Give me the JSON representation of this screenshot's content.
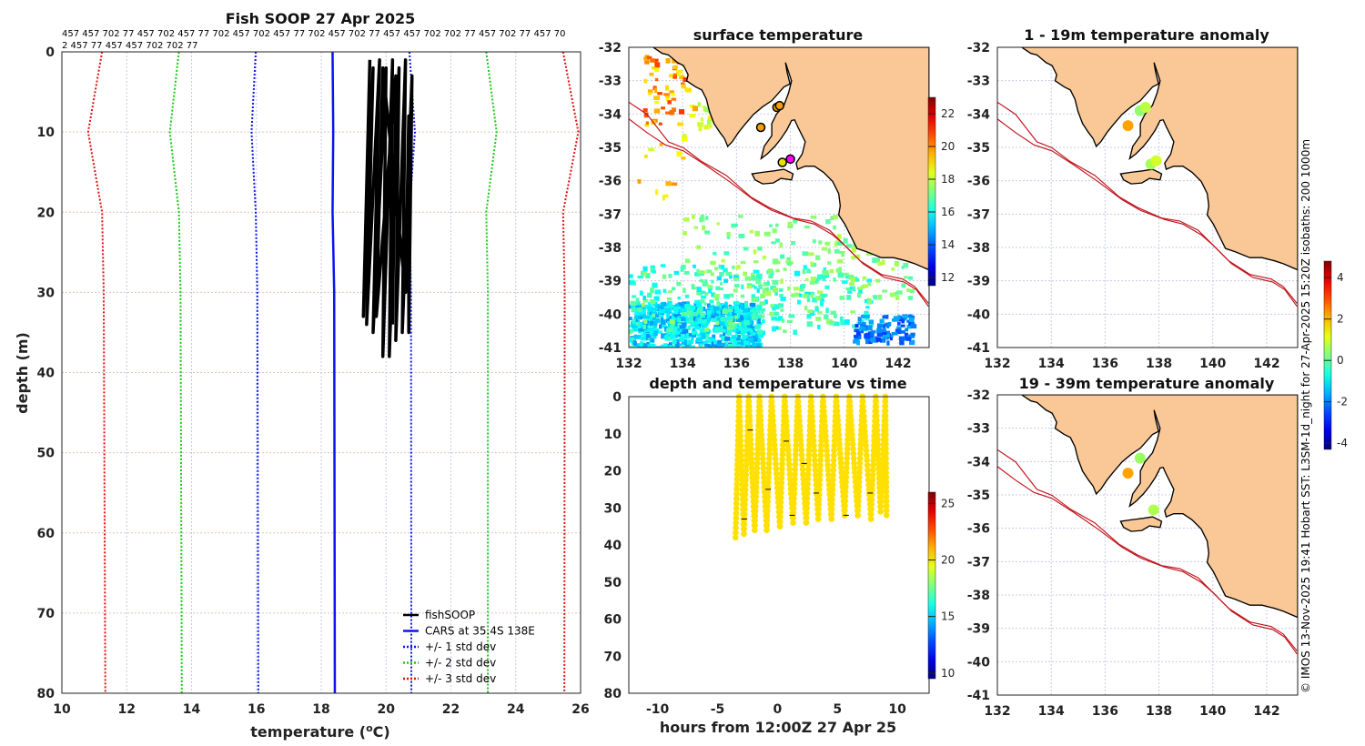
{
  "figure": {
    "credit": "© IMOS 13-Nov-2025 19:41 Hobart SST: L3SM-1d_night for 27-Apr-2025 15:20Z isobaths: 200  1000m"
  },
  "colors": {
    "land": "#f9c896",
    "coast": "#000000",
    "isobath": "#c0141c",
    "fishsoop": "#000000",
    "cars": "#0a14f0",
    "std1": "#0a14f0",
    "std2": "#18c818",
    "std3": "#e01010",
    "grid": "#c4cbe8"
  },
  "chart_data": [
    {
      "id": "profile",
      "type": "line",
      "title": "Fish SOOP 27 Apr 2025",
      "station_ids_line1": "457 457 702 77 457 702 457 77 702 457 702 457 77 702 457 702 77 457 457 702 702 77 457 702 77 457 70",
      "station_ids_line2": "2 457 77 457 457 702 702 77",
      "xlabel": "temperature (",
      "xlabel_sup": "o",
      "xlabel_end": "C)",
      "ylabel": "depth (m)",
      "xlim": [
        10,
        26
      ],
      "ylim": [
        0,
        80
      ],
      "xticks": [
        10,
        12,
        14,
        16,
        18,
        20,
        22,
        24,
        26
      ],
      "yticks": [
        0,
        10,
        20,
        30,
        40,
        50,
        60,
        70,
        80
      ],
      "grid": true,
      "legend_position": "bottom-right",
      "legend": [
        "fishSOOP",
        "CARS at 35.4S 138E",
        "+/- 1 std dev",
        "+/- 2 std dev",
        "+/- 3 std dev"
      ],
      "cars_depth": [
        0,
        10,
        20,
        30,
        80
      ],
      "cars_mean": [
        18.35,
        18.37,
        18.35,
        18.4,
        18.42
      ],
      "cars_std": [
        2.37,
        2.52,
        2.37,
        2.37,
        2.36
      ],
      "fishsoop": [
        [
          19.5,
          1
        ],
        [
          19.3,
          33
        ],
        [
          19.6,
          2
        ],
        [
          19.4,
          34
        ],
        [
          19.8,
          1
        ],
        [
          19.6,
          35
        ],
        [
          20.0,
          2
        ],
        [
          19.9,
          38
        ],
        [
          20.2,
          1
        ],
        [
          20.1,
          38
        ],
        [
          20.4,
          2
        ],
        [
          20.3,
          36
        ],
        [
          20.6,
          1
        ],
        [
          20.5,
          35
        ],
        [
          20.8,
          3
        ],
        [
          20.7,
          35
        ],
        [
          20.7,
          8
        ],
        [
          20.6,
          30
        ],
        [
          19.9,
          2
        ],
        [
          19.7,
          33
        ],
        [
          20.3,
          3
        ],
        [
          20.2,
          34
        ]
      ]
    },
    {
      "id": "sst-map",
      "type": "heatmap",
      "title": "surface temperature",
      "xlim": [
        132,
        143.15
      ],
      "ylim": [
        -41,
        -32
      ],
      "xticks": [
        132,
        134,
        136,
        138,
        140,
        142
      ],
      "yticks": [
        -32,
        -33,
        -34,
        -35,
        -36,
        -37,
        -38,
        -39,
        -40,
        -41
      ],
      "colorbar": {
        "range": [
          11.5,
          23
        ],
        "ticks": [
          12,
          14,
          16,
          18,
          20,
          22
        ]
      },
      "stations": [
        {
          "lon": 137.5,
          "lat": -33.8,
          "value": 21.5,
          "marker": "orange"
        },
        {
          "lon": 137.6,
          "lat": -33.75,
          "value": 21.5,
          "marker": "orange"
        },
        {
          "lon": 136.9,
          "lat": -34.4,
          "value": 21.8,
          "marker": "orange"
        },
        {
          "lon": 137.7,
          "lat": -35.45,
          "value": 20.0,
          "marker": "yellow"
        },
        {
          "lon": 138.0,
          "lat": -35.35,
          "value": 20.0,
          "marker": "magenta"
        }
      ]
    },
    {
      "id": "anom-1-19",
      "type": "heatmap",
      "title": "1 - 19m temperature anomaly",
      "xlim": [
        132,
        143.15
      ],
      "ylim": [
        -41,
        -32
      ],
      "xticks": [
        132,
        134,
        136,
        138,
        140,
        142
      ],
      "yticks": [
        -32,
        -33,
        -34,
        -35,
        -36,
        -37,
        -38,
        -39,
        -40,
        -41
      ],
      "colorbar": {
        "range": [
          -4.3,
          4.8
        ],
        "ticks": [
          4,
          2,
          0,
          -2,
          -4
        ]
      },
      "stations": [
        {
          "lon": 137.3,
          "lat": -33.9,
          "value": 0.4
        },
        {
          "lon": 137.5,
          "lat": -33.8,
          "value": 0.8
        },
        {
          "lon": 136.85,
          "lat": -34.35,
          "value": 2.2
        },
        {
          "lon": 137.7,
          "lat": -35.5,
          "value": 0.6
        },
        {
          "lon": 137.9,
          "lat": -35.4,
          "value": 1.0
        }
      ]
    },
    {
      "id": "anom-19-39",
      "type": "heatmap",
      "title": "19 - 39m temperature anomaly",
      "xlim": [
        132,
        143.15
      ],
      "ylim": [
        -41,
        -32
      ],
      "xticks": [
        132,
        134,
        136,
        138,
        140,
        142
      ],
      "yticks": [
        -32,
        -33,
        -34,
        -35,
        -36,
        -37,
        -38,
        -39,
        -40,
        -41
      ],
      "stations": [
        {
          "lon": 137.3,
          "lat": -33.9,
          "value": 0.5
        },
        {
          "lon": 136.85,
          "lat": -34.35,
          "value": 2.2
        },
        {
          "lon": 137.8,
          "lat": -35.45,
          "value": 0.7
        }
      ]
    },
    {
      "id": "depth-time",
      "type": "scatter",
      "title": "depth and temperature vs time",
      "xlabel": "hours from 12:00Z 27 Apr 25",
      "xlim": [
        -12.4,
        12.65
      ],
      "ylim": [
        0,
        80
      ],
      "xticks": [
        -10,
        -5,
        0,
        5,
        10
      ],
      "yticks": [
        0,
        10,
        20,
        30,
        40,
        50,
        60,
        70,
        80
      ],
      "colorbar": {
        "range": [
          9.5,
          26
        ],
        "ticks": [
          10,
          15,
          20,
          25
        ]
      },
      "track": [
        [
          -3.5,
          38
        ],
        [
          -3.2,
          0
        ],
        [
          -2.8,
          37
        ],
        [
          -2.4,
          0
        ],
        [
          -1.9,
          36
        ],
        [
          -1.5,
          0
        ],
        [
          -0.9,
          36
        ],
        [
          -0.5,
          0
        ],
        [
          0.2,
          35
        ],
        [
          0.6,
          0
        ],
        [
          1.3,
          34
        ],
        [
          1.7,
          0
        ],
        [
          2.4,
          34
        ],
        [
          2.8,
          0
        ],
        [
          3.4,
          33
        ],
        [
          3.8,
          0
        ],
        [
          4.5,
          33
        ],
        [
          4.9,
          0
        ],
        [
          5.6,
          32
        ],
        [
          6.0,
          0
        ],
        [
          6.7,
          32
        ],
        [
          7.1,
          0
        ],
        [
          7.8,
          33
        ],
        [
          8.2,
          0
        ],
        [
          8.6,
          31
        ],
        [
          9.0,
          0
        ],
        [
          9.1,
          32
        ]
      ],
      "track_temperature": 20.3
    }
  ]
}
